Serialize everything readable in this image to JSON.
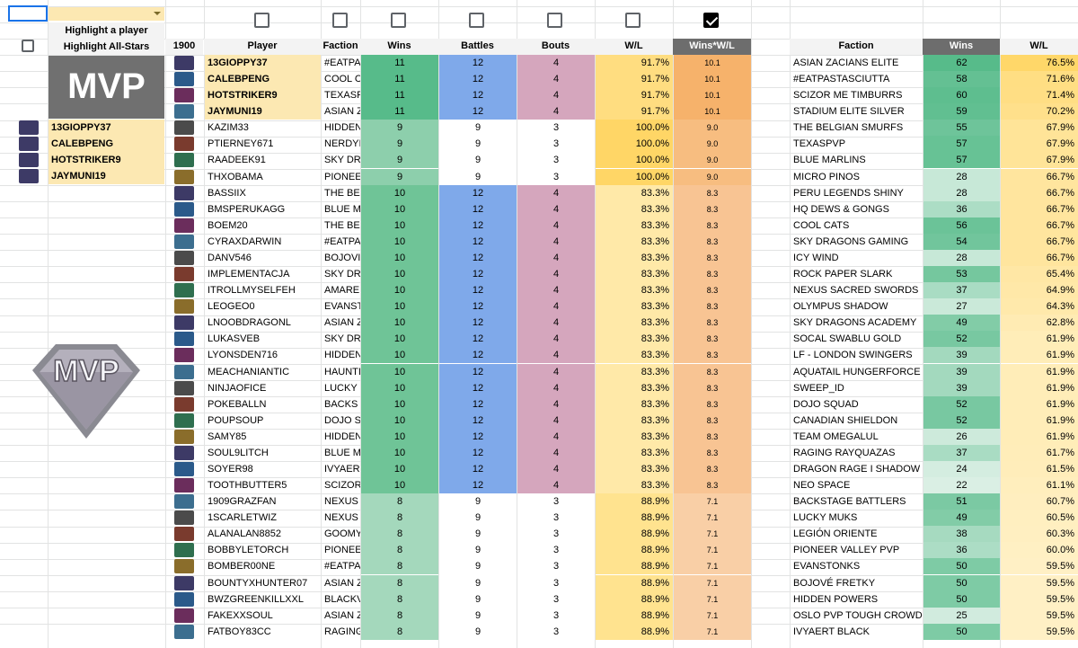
{
  "controls": {
    "highlight_player_label": "Highlight a player",
    "highlight_allstars_label": "Highlight All-Stars",
    "mvp_banner": "MVP",
    "mvp_logo_text": "MVP",
    "mvp_players": [
      "13GIOPPY37",
      "CALEBPENG",
      "HOTSTRIKER9",
      "JAYMUNI19"
    ],
    "top_checkbox_count": 7,
    "wins_wl_checkbox_checked": true
  },
  "players_table": {
    "corner_label": "1900",
    "headers": [
      "Player",
      "Faction",
      "Wins",
      "Battles",
      "Bouts",
      "W/L",
      "Wins*W/L"
    ],
    "rows": [
      {
        "player": "13GIOPPY37",
        "faction": "#EATPA",
        "wins": "11",
        "battles": "12",
        "bouts": "4",
        "wl": "91.7%",
        "score": "10.1",
        "mvp": true
      },
      {
        "player": "CALEBPENG",
        "faction": "COOL C",
        "wins": "11",
        "battles": "12",
        "bouts": "4",
        "wl": "91.7%",
        "score": "10.1",
        "mvp": true
      },
      {
        "player": "HOTSTRIKER9",
        "faction": "TEXASF",
        "wins": "11",
        "battles": "12",
        "bouts": "4",
        "wl": "91.7%",
        "score": "10.1",
        "mvp": true
      },
      {
        "player": "JAYMUNI19",
        "faction": "ASIAN Z",
        "wins": "11",
        "battles": "12",
        "bouts": "4",
        "wl": "91.7%",
        "score": "10.1",
        "mvp": true
      },
      {
        "player": "KAZIM33",
        "faction": "HIDDEN",
        "wins": "9",
        "battles": "9",
        "bouts": "3",
        "wl": "100.0%",
        "score": "9.0",
        "mvp": false
      },
      {
        "player": "PTIERNEY671",
        "faction": "NERDYI",
        "wins": "9",
        "battles": "9",
        "bouts": "3",
        "wl": "100.0%",
        "score": "9.0",
        "mvp": false
      },
      {
        "player": "RAADEEK91",
        "faction": "SKY DR",
        "wins": "9",
        "battles": "9",
        "bouts": "3",
        "wl": "100.0%",
        "score": "9.0",
        "mvp": false
      },
      {
        "player": "THXOBAMA",
        "faction": "PIONEE",
        "wins": "9",
        "battles": "9",
        "bouts": "3",
        "wl": "100.0%",
        "score": "9.0",
        "mvp": false
      },
      {
        "player": "BASSIIX",
        "faction": "THE BE",
        "wins": "10",
        "battles": "12",
        "bouts": "4",
        "wl": "83.3%",
        "score": "8.3",
        "mvp": false
      },
      {
        "player": "BMSPERUKAGG",
        "faction": "BLUE M",
        "wins": "10",
        "battles": "12",
        "bouts": "4",
        "wl": "83.3%",
        "score": "8.3",
        "mvp": false
      },
      {
        "player": "BOEM20",
        "faction": "THE BE",
        "wins": "10",
        "battles": "12",
        "bouts": "4",
        "wl": "83.3%",
        "score": "8.3",
        "mvp": false
      },
      {
        "player": "CYRAXDARWIN",
        "faction": "#EATPA",
        "wins": "10",
        "battles": "12",
        "bouts": "4",
        "wl": "83.3%",
        "score": "8.3",
        "mvp": false
      },
      {
        "player": "DANV546",
        "faction": "BOJOVI",
        "wins": "10",
        "battles": "12",
        "bouts": "4",
        "wl": "83.3%",
        "score": "8.3",
        "mvp": false
      },
      {
        "player": "IMPLEMENTACJA",
        "faction": "SKY DR",
        "wins": "10",
        "battles": "12",
        "bouts": "4",
        "wl": "83.3%",
        "score": "8.3",
        "mvp": false
      },
      {
        "player": "ITROLLMYSELFEH",
        "faction": "AMARE",
        "wins": "10",
        "battles": "12",
        "bouts": "4",
        "wl": "83.3%",
        "score": "8.3",
        "mvp": false
      },
      {
        "player": "LEOGEO0",
        "faction": "EVANST",
        "wins": "10",
        "battles": "12",
        "bouts": "4",
        "wl": "83.3%",
        "score": "8.3",
        "mvp": false
      },
      {
        "player": "LNOOBDRAGONL",
        "faction": "ASIAN Z",
        "wins": "10",
        "battles": "12",
        "bouts": "4",
        "wl": "83.3%",
        "score": "8.3",
        "mvp": false
      },
      {
        "player": "LUKASVEB",
        "faction": "SKY DR",
        "wins": "10",
        "battles": "12",
        "bouts": "4",
        "wl": "83.3%",
        "score": "8.3",
        "mvp": false
      },
      {
        "player": "LYONSDEN716",
        "faction": "HIDDEN",
        "wins": "10",
        "battles": "12",
        "bouts": "4",
        "wl": "83.3%",
        "score": "8.3",
        "mvp": false
      },
      {
        "player": "MEACHANIANTIC",
        "faction": "HAUNTI",
        "wins": "10",
        "battles": "12",
        "bouts": "4",
        "wl": "83.3%",
        "score": "8.3",
        "mvp": false
      },
      {
        "player": "NINJAOFICE",
        "faction": "LUCKY",
        "wins": "10",
        "battles": "12",
        "bouts": "4",
        "wl": "83.3%",
        "score": "8.3",
        "mvp": false
      },
      {
        "player": "POKEBALLN",
        "faction": "BACKS",
        "wins": "10",
        "battles": "12",
        "bouts": "4",
        "wl": "83.3%",
        "score": "8.3",
        "mvp": false
      },
      {
        "player": "POUPSOUP",
        "faction": "DOJO S",
        "wins": "10",
        "battles": "12",
        "bouts": "4",
        "wl": "83.3%",
        "score": "8.3",
        "mvp": false
      },
      {
        "player": "SAMY85",
        "faction": "HIDDEN",
        "wins": "10",
        "battles": "12",
        "bouts": "4",
        "wl": "83.3%",
        "score": "8.3",
        "mvp": false
      },
      {
        "player": "SOUL9LITCH",
        "faction": "BLUE M",
        "wins": "10",
        "battles": "12",
        "bouts": "4",
        "wl": "83.3%",
        "score": "8.3",
        "mvp": false
      },
      {
        "player": "SOYER98",
        "faction": "IVYAER",
        "wins": "10",
        "battles": "12",
        "bouts": "4",
        "wl": "83.3%",
        "score": "8.3",
        "mvp": false
      },
      {
        "player": "TOOTHBUTTER5",
        "faction": "SCIZOR",
        "wins": "10",
        "battles": "12",
        "bouts": "4",
        "wl": "83.3%",
        "score": "8.3",
        "mvp": false
      },
      {
        "player": "1909GRAZFAN",
        "faction": "NEXUS",
        "wins": "8",
        "battles": "9",
        "bouts": "3",
        "wl": "88.9%",
        "score": "7.1",
        "mvp": false
      },
      {
        "player": "1SCARLETWIZ",
        "faction": "NEXUS",
        "wins": "8",
        "battles": "9",
        "bouts": "3",
        "wl": "88.9%",
        "score": "7.1",
        "mvp": false
      },
      {
        "player": "ALANALAN8852",
        "faction": "GOOMY",
        "wins": "8",
        "battles": "9",
        "bouts": "3",
        "wl": "88.9%",
        "score": "7.1",
        "mvp": false
      },
      {
        "player": "BOBBYLETORCH",
        "faction": "PIONEE",
        "wins": "8",
        "battles": "9",
        "bouts": "3",
        "wl": "88.9%",
        "score": "7.1",
        "mvp": false
      },
      {
        "player": "BOMBER00NE",
        "faction": "#EATPA",
        "wins": "8",
        "battles": "9",
        "bouts": "3",
        "wl": "88.9%",
        "score": "7.1",
        "mvp": false
      },
      {
        "player": "BOUNTYXHUNTER07",
        "faction": "ASIAN Z",
        "wins": "8",
        "battles": "9",
        "bouts": "3",
        "wl": "88.9%",
        "score": "7.1",
        "mvp": false
      },
      {
        "player": "BWZGREENKILLXXL",
        "faction": "BLACKV",
        "wins": "8",
        "battles": "9",
        "bouts": "3",
        "wl": "88.9%",
        "score": "7.1",
        "mvp": false
      },
      {
        "player": "FAKEXXSOUL",
        "faction": "ASIAN Z",
        "wins": "8",
        "battles": "9",
        "bouts": "3",
        "wl": "88.9%",
        "score": "7.1",
        "mvp": false
      },
      {
        "player": "FATBOY83CC",
        "faction": "RAGING",
        "wins": "8",
        "battles": "9",
        "bouts": "3",
        "wl": "88.9%",
        "score": "7.1",
        "mvp": false
      }
    ]
  },
  "factions_table": {
    "headers": [
      "Faction",
      "Wins",
      "W/L"
    ],
    "rows": [
      {
        "faction": "ASIAN ZACIANS ELITE",
        "wins": "62",
        "wl": "76.5%"
      },
      {
        "faction": "#EATPASTASCIUTTA",
        "wins": "58",
        "wl": "71.6%"
      },
      {
        "faction": "SCIZOR ME TIMBURRS",
        "wins": "60",
        "wl": "71.4%"
      },
      {
        "faction": "STADIUM ELITE SILVER",
        "wins": "59",
        "wl": "70.2%"
      },
      {
        "faction": "THE BELGIAN SMURFS",
        "wins": "55",
        "wl": "67.9%"
      },
      {
        "faction": "TEXASPVP",
        "wins": "57",
        "wl": "67.9%"
      },
      {
        "faction": "BLUE MARLINS",
        "wins": "57",
        "wl": "67.9%"
      },
      {
        "faction": "MICRO PINOS",
        "wins": "28",
        "wl": "66.7%"
      },
      {
        "faction": "PERU LEGENDS SHINY",
        "wins": "28",
        "wl": "66.7%"
      },
      {
        "faction": "HQ DEWS & GONGS",
        "wins": "36",
        "wl": "66.7%"
      },
      {
        "faction": "COOL CATS",
        "wins": "56",
        "wl": "66.7%"
      },
      {
        "faction": "SKY DRAGONS GAMING",
        "wins": "54",
        "wl": "66.7%"
      },
      {
        "faction": "ICY WIND",
        "wins": "28",
        "wl": "66.7%"
      },
      {
        "faction": "ROCK PAPER SLARK",
        "wins": "53",
        "wl": "65.4%"
      },
      {
        "faction": "NEXUS SACRED SWORDS",
        "wins": "37",
        "wl": "64.9%"
      },
      {
        "faction": "OLYMPUS SHADOW",
        "wins": "27",
        "wl": "64.3%"
      },
      {
        "faction": "SKY DRAGONS ACADEMY",
        "wins": "49",
        "wl": "62.8%"
      },
      {
        "faction": "SOCAL SWABLU GOLD",
        "wins": "52",
        "wl": "61.9%"
      },
      {
        "faction": "LF - LONDON SWINGERS",
        "wins": "39",
        "wl": "61.9%"
      },
      {
        "faction": "AQUATAIL HUNGERFORCE",
        "wins": "39",
        "wl": "61.9%"
      },
      {
        "faction": "SWEEP_ID",
        "wins": "39",
        "wl": "61.9%"
      },
      {
        "faction": "DOJO SQUAD",
        "wins": "52",
        "wl": "61.9%"
      },
      {
        "faction": "CANADIAN SHIELDON",
        "wins": "52",
        "wl": "61.9%"
      },
      {
        "faction": "TEAM OMEGALUL",
        "wins": "26",
        "wl": "61.9%"
      },
      {
        "faction": "RAGING RAYQUAZAS",
        "wins": "37",
        "wl": "61.7%"
      },
      {
        "faction": "DRAGON RAGE I SHADOW",
        "wins": "24",
        "wl": "61.5%"
      },
      {
        "faction": "NEO SPACE",
        "wins": "22",
        "wl": "61.1%"
      },
      {
        "faction": "BACKSTAGE BATTLERS",
        "wins": "51",
        "wl": "60.7%"
      },
      {
        "faction": "LUCKY MUKS",
        "wins": "49",
        "wl": "60.5%"
      },
      {
        "faction": "LEGIÓN ORIENTE",
        "wins": "38",
        "wl": "60.3%"
      },
      {
        "faction": "PIONEER VALLEY PVP",
        "wins": "36",
        "wl": "60.0%"
      },
      {
        "faction": "EVANSTONKS",
        "wins": "50",
        "wl": "59.5%"
      },
      {
        "faction": "BOJOVÉ FRETKY",
        "wins": "50",
        "wl": "59.5%"
      },
      {
        "faction": "HIDDEN POWERS",
        "wins": "50",
        "wl": "59.5%"
      },
      {
        "faction": "OSLO PVP TOUGH CROWD",
        "wins": "25",
        "wl": "59.5%"
      },
      {
        "faction": "IVYAERT BLACK",
        "wins": "50",
        "wl": "59.5%"
      }
    ]
  },
  "colors": {
    "wins_green": "#57bb8a",
    "battles_blue": "#7fa9ea",
    "bouts_pink": "#d5a6bd",
    "wl_yellow": "#ffd666",
    "score_orange": "#f6b26b",
    "highlight_yellow": "#fce8b2",
    "header_dark": "#6d6d6d"
  }
}
